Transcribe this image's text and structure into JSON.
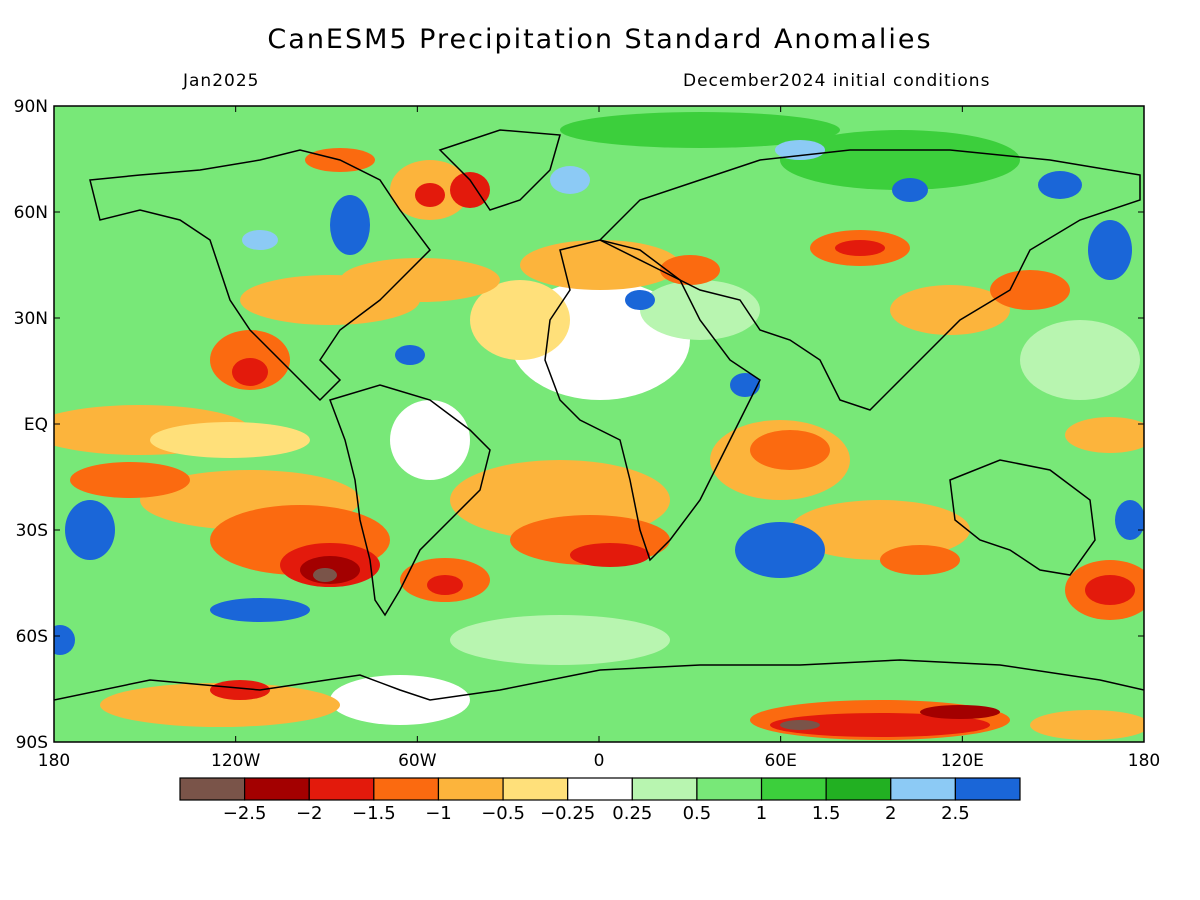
{
  "title": "CanESM5 Precipitation Standard Anomalies",
  "valid_month": "Jan2025",
  "init_label": "December2024 initial conditions",
  "lat_labels": [
    "90N",
    "60N",
    "30N",
    "EQ",
    "30S",
    "60S",
    "90S"
  ],
  "lon_labels": [
    "180",
    "120W",
    "60W",
    "0",
    "60E",
    "120E",
    "180"
  ],
  "colorbar": {
    "colors": [
      "#7a5449",
      "#a30000",
      "#e31a0c",
      "#fb6a10",
      "#fcb43c",
      "#ffe07a",
      "#ffffff",
      "#b8f5b0",
      "#78e878",
      "#3ccf3c",
      "#22b022",
      "#8ccaf5",
      "#1a66d8"
    ],
    "tick_labels": [
      "-2.5",
      "-2",
      "-1.5",
      "-1",
      "-0.5",
      "-0.25",
      "0.25",
      "0.5",
      "1",
      "1.5",
      "2",
      "2.5"
    ]
  }
}
